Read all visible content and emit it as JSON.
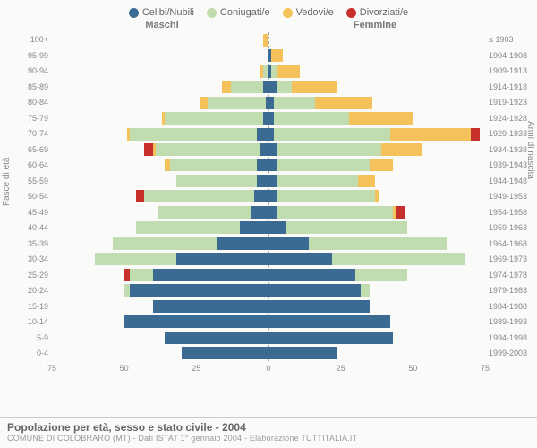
{
  "legend": [
    {
      "label": "Celibi/Nubili",
      "color": "#3b6a93"
    },
    {
      "label": "Coniugati/e",
      "color": "#c1dcae"
    },
    {
      "label": "Vedovi/e",
      "color": "#f5c15b"
    },
    {
      "label": "Divorziati/e",
      "color": "#c72f2a"
    }
  ],
  "headers": {
    "male": "Maschi",
    "female": "Femmine"
  },
  "axis_labels": {
    "left": "Fasce di età",
    "right": "Anni di nascita"
  },
  "age_labels": [
    "100+",
    "95-99",
    "90-94",
    "85-89",
    "80-84",
    "75-79",
    "70-74",
    "65-69",
    "60-64",
    "55-59",
    "50-54",
    "45-49",
    "40-44",
    "35-39",
    "30-34",
    "25-29",
    "20-24",
    "15-19",
    "10-14",
    "5-9",
    "0-4"
  ],
  "year_labels": [
    "≤ 1903",
    "1904-1908",
    "1909-1913",
    "1914-1918",
    "1919-1923",
    "1924-1928",
    "1929-1933",
    "1934-1938",
    "1939-1943",
    "1944-1948",
    "1949-1953",
    "1954-1958",
    "1959-1963",
    "1964-1968",
    "1969-1973",
    "1974-1978",
    "1979-1983",
    "1984-1988",
    "1989-1993",
    "1994-1998",
    "1999-2003"
  ],
  "x_max": 75,
  "x_ticks": [
    75,
    50,
    25,
    0,
    25,
    50,
    75
  ],
  "colors": {
    "single": "#3b6a93",
    "married": "#c1dcae",
    "widowed": "#f5c15b",
    "divorced": "#c72f2a",
    "bg": "#fafaf8",
    "grid": "#cccccc",
    "text_muted": "#888888"
  },
  "rows": [
    {
      "male": {
        "single": 0,
        "married": 0,
        "widowed": 2,
        "divorced": 0
      },
      "female": {
        "single": 0,
        "married": 0,
        "widowed": 0,
        "divorced": 0
      }
    },
    {
      "male": {
        "single": 0,
        "married": 0,
        "widowed": 0,
        "divorced": 0
      },
      "female": {
        "single": 1,
        "married": 0,
        "widowed": 4,
        "divorced": 0
      }
    },
    {
      "male": {
        "single": 0,
        "married": 2,
        "widowed": 1,
        "divorced": 0
      },
      "female": {
        "single": 1,
        "married": 2,
        "widowed": 8,
        "divorced": 0
      }
    },
    {
      "male": {
        "single": 2,
        "married": 11,
        "widowed": 3,
        "divorced": 0
      },
      "female": {
        "single": 3,
        "married": 5,
        "widowed": 16,
        "divorced": 0
      }
    },
    {
      "male": {
        "single": 1,
        "married": 20,
        "widowed": 3,
        "divorced": 0
      },
      "female": {
        "single": 2,
        "married": 14,
        "widowed": 20,
        "divorced": 0
      }
    },
    {
      "male": {
        "single": 2,
        "married": 34,
        "widowed": 1,
        "divorced": 0
      },
      "female": {
        "single": 2,
        "married": 26,
        "widowed": 22,
        "divorced": 0
      }
    },
    {
      "male": {
        "single": 4,
        "married": 44,
        "widowed": 1,
        "divorced": 0
      },
      "female": {
        "single": 2,
        "married": 40,
        "widowed": 28,
        "divorced": 3
      }
    },
    {
      "male": {
        "single": 3,
        "married": 36,
        "widowed": 1,
        "divorced": 3
      },
      "female": {
        "single": 3,
        "married": 36,
        "widowed": 14,
        "divorced": 0
      }
    },
    {
      "male": {
        "single": 4,
        "married": 30,
        "widowed": 2,
        "divorced": 0
      },
      "female": {
        "single": 3,
        "married": 32,
        "widowed": 8,
        "divorced": 0
      }
    },
    {
      "male": {
        "single": 4,
        "married": 28,
        "widowed": 0,
        "divorced": 0
      },
      "female": {
        "single": 3,
        "married": 28,
        "widowed": 6,
        "divorced": 0
      }
    },
    {
      "male": {
        "single": 5,
        "married": 38,
        "widowed": 0,
        "divorced": 3
      },
      "female": {
        "single": 3,
        "married": 34,
        "widowed": 1,
        "divorced": 0
      }
    },
    {
      "male": {
        "single": 6,
        "married": 32,
        "widowed": 0,
        "divorced": 0
      },
      "female": {
        "single": 3,
        "married": 40,
        "widowed": 1,
        "divorced": 3
      }
    },
    {
      "male": {
        "single": 10,
        "married": 36,
        "widowed": 0,
        "divorced": 0
      },
      "female": {
        "single": 6,
        "married": 42,
        "widowed": 0,
        "divorced": 0
      }
    },
    {
      "male": {
        "single": 18,
        "married": 36,
        "widowed": 0,
        "divorced": 0
      },
      "female": {
        "single": 14,
        "married": 48,
        "widowed": 0,
        "divorced": 0
      }
    },
    {
      "male": {
        "single": 32,
        "married": 28,
        "widowed": 0,
        "divorced": 0
      },
      "female": {
        "single": 22,
        "married": 46,
        "widowed": 0,
        "divorced": 0
      }
    },
    {
      "male": {
        "single": 40,
        "married": 8,
        "widowed": 0,
        "divorced": 2
      },
      "female": {
        "single": 30,
        "married": 18,
        "widowed": 0,
        "divorced": 0
      }
    },
    {
      "male": {
        "single": 48,
        "married": 2,
        "widowed": 0,
        "divorced": 0
      },
      "female": {
        "single": 32,
        "married": 3,
        "widowed": 0,
        "divorced": 0
      }
    },
    {
      "male": {
        "single": 40,
        "married": 0,
        "widowed": 0,
        "divorced": 0
      },
      "female": {
        "single": 35,
        "married": 0,
        "widowed": 0,
        "divorced": 0
      }
    },
    {
      "male": {
        "single": 50,
        "married": 0,
        "widowed": 0,
        "divorced": 0
      },
      "female": {
        "single": 42,
        "married": 0,
        "widowed": 0,
        "divorced": 0
      }
    },
    {
      "male": {
        "single": 36,
        "married": 0,
        "widowed": 0,
        "divorced": 0
      },
      "female": {
        "single": 43,
        "married": 0,
        "widowed": 0,
        "divorced": 0
      }
    },
    {
      "male": {
        "single": 30,
        "married": 0,
        "widowed": 0,
        "divorced": 0
      },
      "female": {
        "single": 24,
        "married": 0,
        "widowed": 0,
        "divorced": 0
      }
    }
  ],
  "footer": {
    "title": "Popolazione per età, sesso e stato civile - 2004",
    "subtitle": "COMUNE DI COLOBRARO (MT) - Dati ISTAT 1° gennaio 2004 - Elaborazione TUTTITALIA.IT"
  }
}
